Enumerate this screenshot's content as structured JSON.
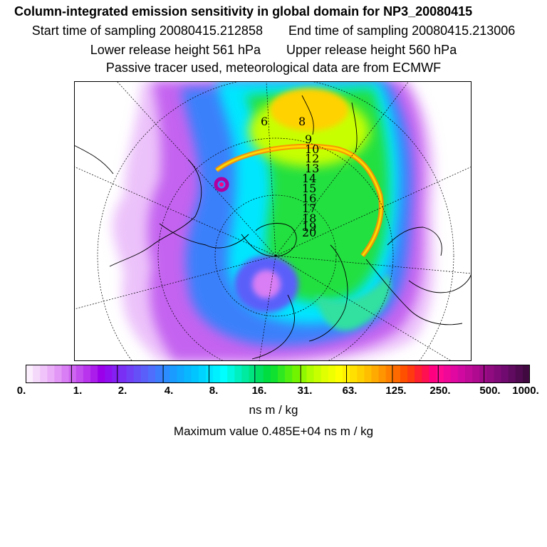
{
  "title": "Column-integrated emission sensitivity in global domain for NP3_20080415",
  "sampling": {
    "start_label": "Start time of sampling",
    "start_value": "20080415.212858",
    "end_label": "End time of sampling",
    "end_value": "20080415.213006"
  },
  "release": {
    "lower_label": "Lower release height",
    "lower_value": "561 hPa",
    "upper_label": "Upper release height",
    "upper_value": "560 hPa"
  },
  "note": "Passive tracer used, meteorological data are from ECMWF",
  "chart_data": {
    "type": "heatmap",
    "projection": "north polar stereographic",
    "day_markers": [
      "6",
      "8",
      "9",
      "10",
      "12",
      "13",
      "14",
      "15",
      "16",
      "17",
      "18",
      "19",
      "20"
    ],
    "colorbar": {
      "tick_labels": [
        "0.",
        "1.",
        "2.",
        "4.",
        "8.",
        "16.",
        "31.",
        "63.",
        "125.",
        "250.",
        "500.",
        "1000."
      ],
      "units": "ns m / kg",
      "colors": [
        "#fbeefd",
        "#f5d9fb",
        "#f0c4fa",
        "#eaaef8",
        "#e296f6",
        "#d97ef4",
        "#cf66f1",
        "#c44def",
        "#b835ed",
        "#aa1deb",
        "#9b00ea",
        "#8f0ff0",
        "#8420f2",
        "#7a30f4",
        "#7040f7",
        "#6550f8",
        "#5a5ffa",
        "#4f6efc",
        "#3c7dfd",
        "#2a8cfe",
        "#1a9bff",
        "#10a9ff",
        "#08b7ff",
        "#00c5ff",
        "#00d3ff",
        "#00e3ff",
        "#00f0ff",
        "#00ffff",
        "#00f7e0",
        "#00f0c0",
        "#00eaa0",
        "#00e480",
        "#00e060",
        "#00dd40",
        "#10e030",
        "#30e820",
        "#50ef10",
        "#70f400",
        "#90f800",
        "#b0fc00",
        "#c8ff00",
        "#e0ff00",
        "#f0ff00",
        "#ffff00",
        "#fff000",
        "#ffe000",
        "#ffd000",
        "#ffbf00",
        "#ffaa00",
        "#ff9500",
        "#ff8000",
        "#ff6a00",
        "#ff5000",
        "#ff3a10",
        "#ff2030",
        "#ff1050",
        "#ff0080",
        "#ff0a90",
        "#f00898",
        "#e008a0",
        "#d00aa0",
        "#c00a98",
        "#b00a90",
        "#a00a88",
        "#900a80",
        "#800a78",
        "#700a70",
        "#600a60",
        "#500a50",
        "#400a40"
      ]
    },
    "max_label": "Maximum value",
    "max_value": "0.485E+04 ns m / kg"
  }
}
